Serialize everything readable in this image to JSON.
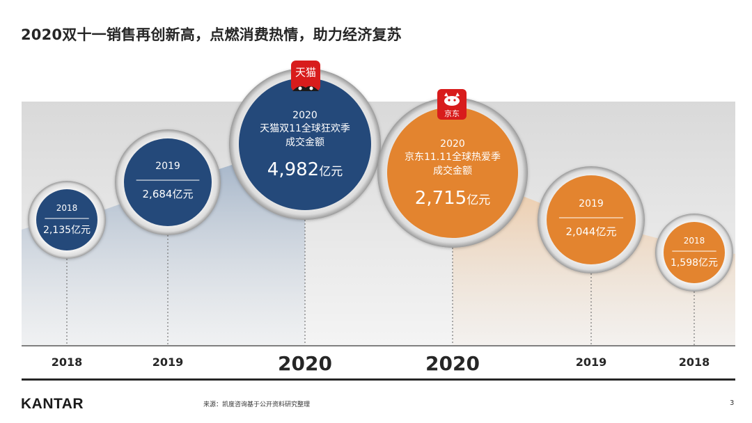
{
  "title": "2020双十一销售再创新高，点燃消费热情，助力经济复苏",
  "colors": {
    "tmall": "#24497a",
    "jd": "#e3842f",
    "band": "#e5e5e5",
    "axis": "#333333"
  },
  "tmall_logo": {
    "text": "天猫",
    "color": "#d81c1c"
  },
  "jd_logo": {
    "text": "京东",
    "color": "#d81c1c"
  },
  "chart_data": {
    "type": "bubble",
    "x_labels": [
      "2018",
      "2019",
      "2020",
      "2020",
      "2019",
      "2018"
    ],
    "series": [
      {
        "name": "天猫",
        "points": [
          {
            "year": "2018",
            "value": 2135,
            "label": "2,135",
            "unit": "亿元"
          },
          {
            "year": "2019",
            "value": 2684,
            "label": "2,684",
            "unit": "亿元"
          },
          {
            "year": "2020",
            "value": 4982,
            "label": "4,982",
            "unit": "亿元",
            "lines": [
              "天猫双11全球狂欢季",
              "成交金额"
            ]
          }
        ]
      },
      {
        "name": "京东",
        "points": [
          {
            "year": "2020",
            "value": 2715,
            "label": "2,715",
            "unit": "亿元",
            "lines": [
              "京东11.11全球热爱季",
              "成交金额"
            ]
          },
          {
            "year": "2019",
            "value": 2044,
            "label": "2,044",
            "unit": "亿元"
          },
          {
            "year": "2018",
            "value": 1598,
            "label": "1,598",
            "unit": "亿元"
          }
        ]
      }
    ]
  },
  "footer": {
    "brand": "KANTAR",
    "source": "来源：凯度咨询基于公开资料研究整理",
    "page": "3"
  }
}
